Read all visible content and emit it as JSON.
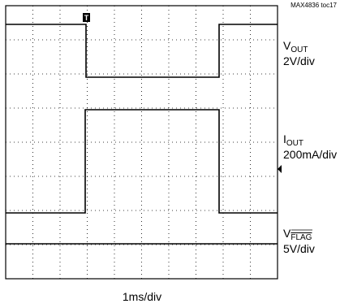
{
  "header": {
    "title": "MAX4836 toc17"
  },
  "traces": [
    {
      "label": "V",
      "subscript": "OUT",
      "scale": "2V/div"
    },
    {
      "label": "I",
      "subscript": "OUT",
      "scale": "200mA/div"
    },
    {
      "label": "V",
      "subscript": "FLAG",
      "scale": "5V/div"
    }
  ],
  "trigger": "T",
  "timebase": "1ms/div"
}
